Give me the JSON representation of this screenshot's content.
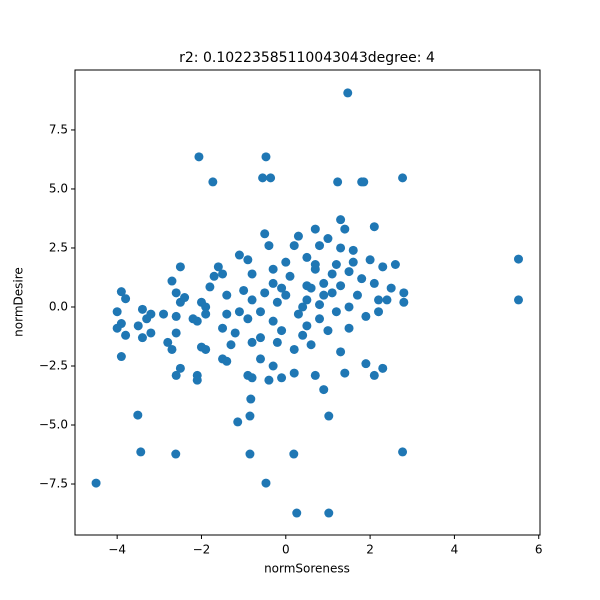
{
  "chart_data": {
    "type": "scatter",
    "title": "r2: 0.10223585110043043degree: 4",
    "x_label": "normSoreness",
    "y_label": "normDesire",
    "color": "#1f77b4",
    "xlim": [
      -5.0,
      6.03
    ],
    "ylim": [
      -9.66,
      10.04
    ],
    "xticks": [
      {
        "value": -4,
        "label": "−4"
      },
      {
        "value": -2,
        "label": "−2"
      },
      0,
      2,
      4,
      6
    ],
    "yticks": [
      {
        "value": -7.5,
        "label": "−7.5"
      },
      {
        "value": -5,
        "label": "−5.0"
      },
      {
        "value": -2.5,
        "label": "−2.5"
      },
      {
        "value": 0,
        "label": "0.0"
      },
      2.5,
      {
        "value": 5,
        "label": "5.0"
      },
      7.5
    ],
    "x": [
      1.47,
      -2.06,
      -0.47,
      -1.73,
      -0.55,
      -0.36,
      1.23,
      1.8,
      1.85,
      2.77,
      5.52,
      5.52,
      -4.5,
      -3.51,
      -3.44,
      -2.61,
      -0.85,
      -0.47,
      0.19,
      0.26,
      1.02,
      1.02,
      2.77,
      -1.14,
      -0.85,
      -0.83,
      -3.9,
      -3.8,
      -4.0,
      -3.9,
      -4.0,
      -3.8,
      -3.9,
      -3.4,
      -3.3,
      -3.2,
      -3.4,
      -3.2,
      -3.5,
      -2.9,
      -2.8,
      -2.7,
      -2.6,
      -2.5,
      -2.6,
      -2.5,
      -2.7,
      -2.4,
      -2.6,
      -2.5,
      -2.6,
      -2.1,
      -2.1,
      -2.0,
      -1.9,
      -2.1,
      -1.9,
      -2.0,
      -1.8,
      -1.6,
      -1.7,
      -1.5,
      -1.4,
      -1.4,
      -1.5,
      -1.3,
      -1.5,
      -1.4,
      -1.2,
      -1.1,
      -1.0,
      -1.1,
      -0.9,
      -0.8,
      -0.8,
      -0.9,
      -0.8,
      -0.9,
      -0.8,
      -0.6,
      -0.6,
      -0.6,
      -0.5,
      -0.5,
      -0.4,
      -0.3,
      -0.3,
      -0.2,
      -0.3,
      -0.2,
      -0.3,
      -0.4,
      -0.1,
      -0.1,
      0.0,
      0.0,
      0.1,
      0.2,
      0.3,
      0.3,
      0.2,
      0.2,
      0.4,
      0.5,
      0.5,
      0.5,
      0.5,
      0.6,
      0.7,
      0.7,
      0.8,
      0.8,
      0.9,
      0.9,
      1.0,
      1.0,
      1.1,
      1.2,
      1.2,
      1.3,
      1.3,
      1.3,
      1.3,
      1.4,
      1.4,
      1.5,
      1.5,
      1.5,
      1.6,
      1.7,
      1.8,
      1.9,
      1.9,
      2.0,
      2.1,
      2.1,
      2.1,
      2.2,
      2.3,
      2.2,
      2.3,
      2.4,
      2.5,
      2.6,
      2.8,
      2.8,
      0.7,
      0.6,
      0.9,
      1.1,
      0.4,
      -0.1,
      1.6,
      0.8,
      0.7,
      -1.9,
      -2.2
    ],
    "y": [
      9.07,
      6.36,
      6.36,
      5.3,
      5.47,
      5.47,
      5.3,
      5.3,
      5.3,
      5.47,
      2.03,
      0.3,
      -7.46,
      -4.58,
      -6.14,
      -6.23,
      -6.23,
      -7.46,
      -6.23,
      -8.73,
      -8.73,
      -4.62,
      -6.14,
      -4.87,
      -4.62,
      -3.9,
      0.65,
      0.35,
      -0.2,
      -0.7,
      -0.9,
      -1.2,
      -2.1,
      -0.1,
      -0.5,
      -0.3,
      -1.3,
      -1.1,
      -0.8,
      -0.3,
      -1.5,
      -1.8,
      -0.4,
      0.2,
      0.6,
      1.7,
      1.1,
      0.4,
      -1.1,
      -2.6,
      -2.9,
      -2.9,
      -3.1,
      -1.7,
      -1.8,
      -0.6,
      -0.3,
      0.2,
      0.85,
      1.7,
      1.3,
      1.4,
      0.5,
      -0.3,
      -0.9,
      -1.6,
      -2.2,
      -2.3,
      -1.1,
      -0.2,
      0.7,
      2.2,
      2.0,
      1.4,
      0.3,
      -0.5,
      -1.5,
      -2.9,
      -3.0,
      -2.2,
      -1.3,
      -0.2,
      0.6,
      3.1,
      2.6,
      1.6,
      1.0,
      0.2,
      -0.6,
      -1.5,
      -2.5,
      -3.1,
      -3.0,
      -1.0,
      0.5,
      1.9,
      1.3,
      2.6,
      3.0,
      -0.3,
      -1.8,
      -2.8,
      -1.2,
      0.3,
      0.9,
      2.1,
      -0.8,
      -1.6,
      -2.9,
      1.6,
      0.1,
      -0.5,
      1.0,
      -3.5,
      2.9,
      -1.0,
      0.6,
      1.8,
      -0.2,
      2.5,
      3.7,
      0.9,
      -1.9,
      -2.8,
      3.3,
      1.5,
      0.0,
      -0.9,
      2.4,
      0.5,
      1.2,
      -0.4,
      -2.4,
      2.0,
      1.0,
      -2.9,
      3.4,
      0.3,
      1.7,
      -0.2,
      -2.6,
      0.3,
      0.8,
      1.8,
      0.6,
      0.2,
      1.8,
      0.8,
      0.5,
      1.4,
      0.0,
      0.8,
      1.9,
      2.6,
      3.3,
      0.0,
      -0.5
    ]
  }
}
